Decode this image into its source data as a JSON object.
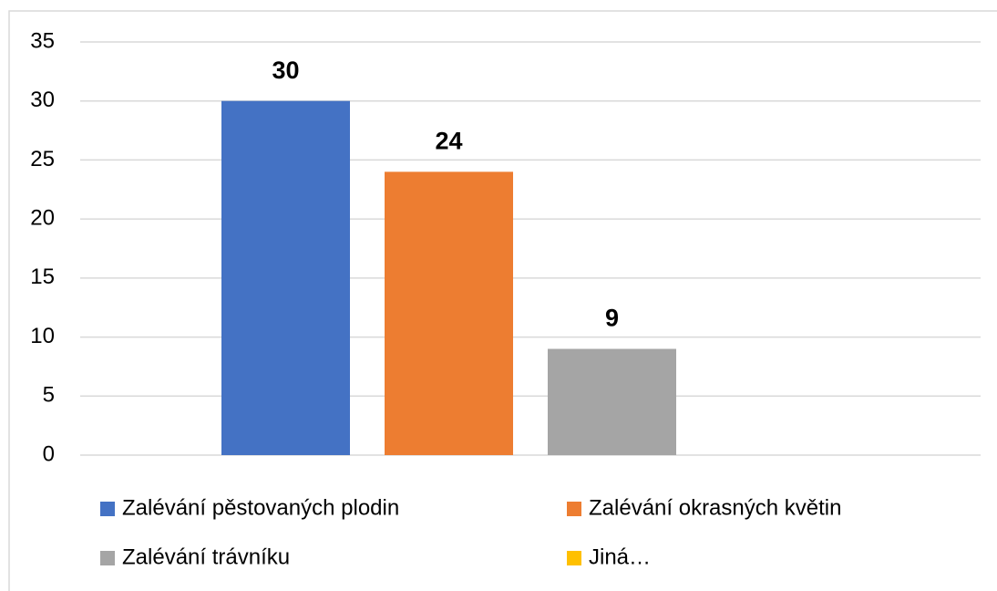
{
  "chart_data": {
    "type": "bar",
    "categories": [
      null
    ],
    "series": [
      {
        "name": "Zalévání pěstovaných plodin",
        "color": "#4472c4",
        "values": [
          30
        ]
      },
      {
        "name": "Zalévání okrasných květin",
        "color": "#ed7d31",
        "values": [
          24
        ]
      },
      {
        "name": "Zalévání trávníku",
        "color": "#a5a5a5",
        "values": [
          9
        ]
      },
      {
        "name": "Jiná…",
        "color": "#ffc000",
        "values": [
          null
        ]
      }
    ],
    "ylim": [
      0,
      35
    ],
    "yticks": [
      0,
      5,
      10,
      15,
      20,
      25,
      30,
      35
    ],
    "grid": true,
    "legend": "bottom"
  }
}
